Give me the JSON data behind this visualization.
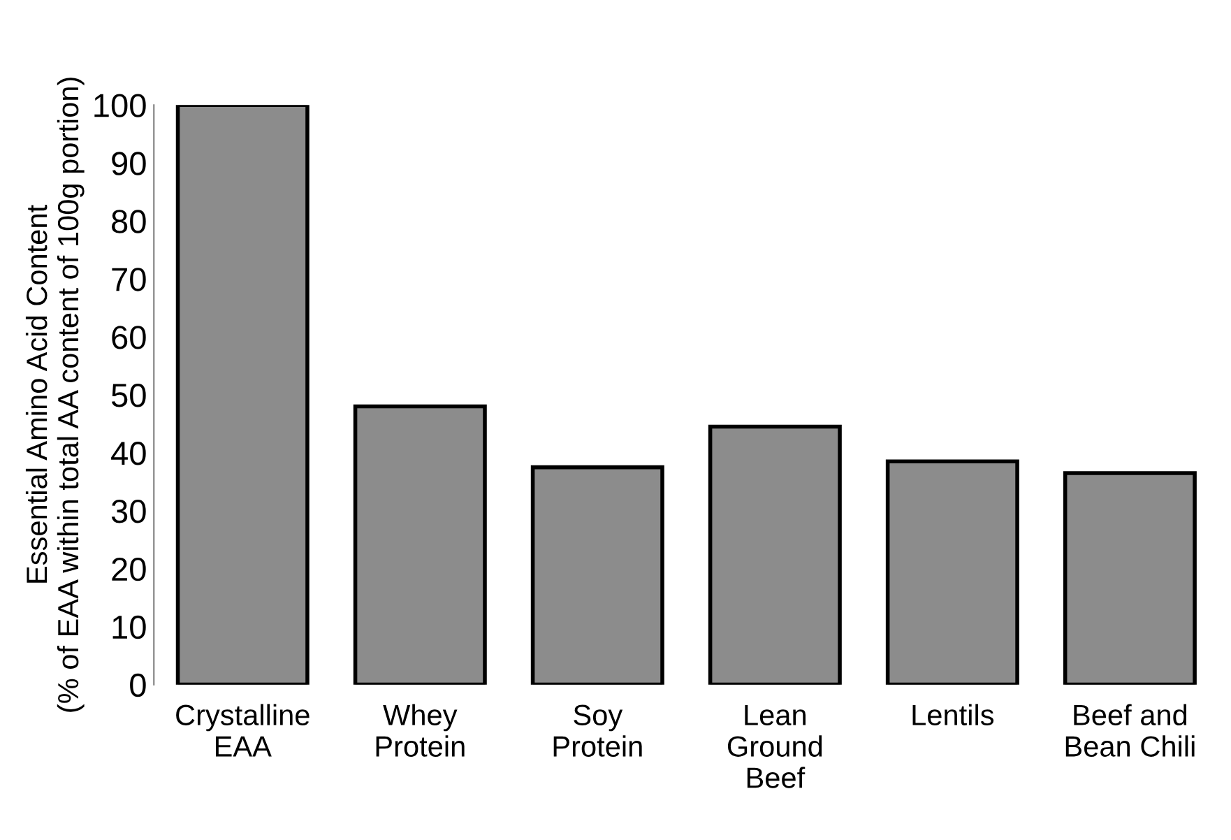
{
  "chart_data": {
    "type": "bar",
    "ylabel": "Essential Amino Acid Content\n(% of EAA within total AA content of 100g portion)",
    "categories": [
      "Crystalline\nEAA",
      "Whey\nProtein",
      "Soy\nProtein",
      "Lean\nGround\nBeef",
      "Lentils",
      "Beef and\nBean Chili"
    ],
    "values": [
      100,
      48,
      37.5,
      44.5,
      38.5,
      36.5
    ],
    "color": "#8c8c8c",
    "ylim": [
      0,
      100
    ],
    "yticks": [
      0,
      10,
      20,
      30,
      40,
      50,
      60,
      70,
      80,
      90,
      100
    ],
    "grid": false,
    "legend": false
  }
}
